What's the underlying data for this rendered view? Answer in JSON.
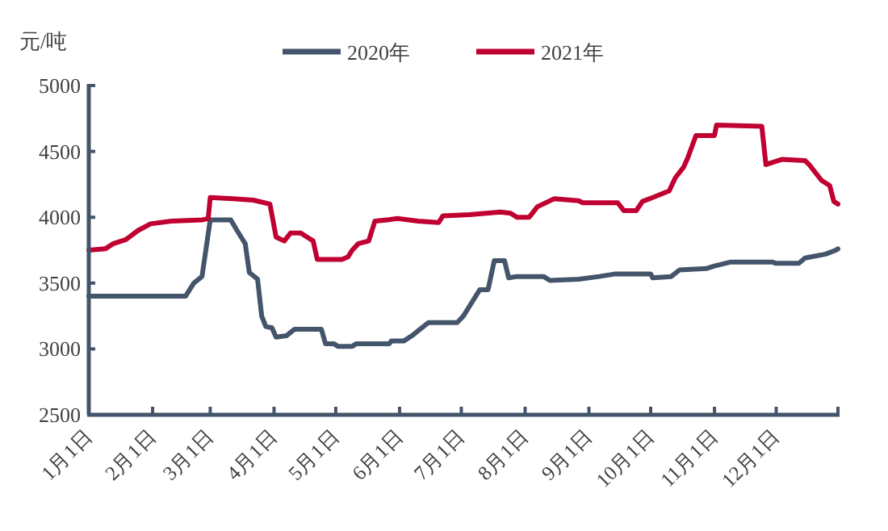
{
  "chart_data": {
    "type": "line",
    "ylabel": "元/吨",
    "ylim": [
      2500,
      5000
    ],
    "yticks": [
      2500,
      3000,
      3500,
      4000,
      4500,
      5000
    ],
    "xlim": [
      "--01-01",
      "--12-31"
    ],
    "xticks": [
      {
        "value": "--01-01",
        "label": "1月1日"
      },
      {
        "value": "--02-01",
        "label": "2月1日"
      },
      {
        "value": "--03-01",
        "label": "3月1日"
      },
      {
        "value": "--04-01",
        "label": "4月1日"
      },
      {
        "value": "--05-01",
        "label": "5月1日"
      },
      {
        "value": "--06-01",
        "label": "6月1日"
      },
      {
        "value": "--07-01",
        "label": "7月1日"
      },
      {
        "value": "--08-01",
        "label": "8月1日"
      },
      {
        "value": "--09-01",
        "label": "9月1日"
      },
      {
        "value": "--10-01",
        "label": "10月1日"
      },
      {
        "value": "--11-01",
        "label": "11月1日"
      },
      {
        "value": "--12-01",
        "label": "12月1日"
      },
      {
        "value": "--12-31",
        "label": null
      }
    ],
    "legend": "top",
    "line_style": "solid",
    "series": [
      {
        "name": "2020年",
        "color": "#44546a",
        "x": [
          "--01-01",
          "--02-17",
          "--02-21",
          "--02-25",
          "--03-01",
          "--03-11",
          "--03-14",
          "--03-18",
          "--03-20",
          "--03-24",
          "--03-26",
          "--03-28",
          "--03-31",
          "--04-02",
          "--04-07",
          "--04-11",
          "--04-24",
          "--04-26",
          "--04-30",
          "--05-02",
          "--05-09",
          "--05-11",
          "--05-27",
          "--05-28",
          "--06-03",
          "--06-07",
          "--06-11",
          "--06-15",
          "--06-29",
          "--07-02",
          "--07-06",
          "--07-10",
          "--07-14",
          "--07-17",
          "--07-22",
          "--07-24",
          "--07-28",
          "--08-10",
          "--08-13",
          "--08-27",
          "--09-06",
          "--09-14",
          "--10-01",
          "--10-02",
          "--10-11",
          "--10-15",
          "--10-28",
          "--11-01",
          "--11-09",
          "--11-29",
          "--12-01",
          "--12-12",
          "--12-15",
          "--12-25",
          "--12-30",
          "--12-31"
        ],
        "values": [
          3400,
          3400,
          3500,
          3550,
          3980,
          3980,
          3900,
          3800,
          3580,
          3530,
          3250,
          3170,
          3160,
          3090,
          3100,
          3150,
          3150,
          3040,
          3040,
          3020,
          3020,
          3040,
          3040,
          3060,
          3060,
          3100,
          3150,
          3200,
          3200,
          3250,
          3350,
          3450,
          3450,
          3670,
          3670,
          3540,
          3550,
          3550,
          3520,
          3530,
          3550,
          3570,
          3570,
          3540,
          3550,
          3600,
          3610,
          3630,
          3660,
          3660,
          3650,
          3650,
          3690,
          3720,
          3750,
          3760
        ]
      },
      {
        "name": "2021年",
        "color": "#c00030",
        "x": [
          "--01-01",
          "--01-09",
          "--01-13",
          "--01-19",
          "--01-25",
          "--01-31",
          "--02-10",
          "--02-25",
          "--02-28",
          "--03-01",
          "--03-12",
          "--03-22",
          "--03-30",
          "--04-02",
          "--04-06",
          "--04-09",
          "--04-14",
          "--04-17",
          "--04-20",
          "--04-22",
          "--05-04",
          "--05-07",
          "--05-09",
          "--05-12",
          "--05-17",
          "--05-20",
          "--05-26",
          "--05-31",
          "--06-10",
          "--06-20",
          "--06-22",
          "--07-05",
          "--07-20",
          "--07-25",
          "--07-28",
          "--08-03",
          "--08-07",
          "--08-15",
          "--08-27",
          "--08-29",
          "--09-15",
          "--09-18",
          "--09-24",
          "--09-27",
          "--10-02",
          "--10-10",
          "--10-13",
          "--10-17",
          "--10-19",
          "--10-23",
          "--11-01",
          "--11-02",
          "--11-24",
          "--11-26",
          "--12-04",
          "--12-15",
          "--12-17",
          "--12-23",
          "--12-27",
          "--12-29",
          "--12-31"
        ],
        "values": [
          3750,
          3760,
          3800,
          3830,
          3900,
          3950,
          3970,
          3980,
          3990,
          4150,
          4140,
          4130,
          4100,
          3850,
          3820,
          3880,
          3880,
          3850,
          3820,
          3680,
          3680,
          3700,
          3750,
          3800,
          3820,
          3970,
          3980,
          3990,
          3970,
          3960,
          4010,
          4020,
          4040,
          4030,
          4000,
          4000,
          4080,
          4140,
          4125,
          4110,
          4110,
          4050,
          4050,
          4120,
          4150,
          4200,
          4300,
          4380,
          4450,
          4620,
          4620,
          4700,
          4690,
          4400,
          4440,
          4430,
          4400,
          4280,
          4240,
          4120,
          4100
        ]
      }
    ]
  }
}
